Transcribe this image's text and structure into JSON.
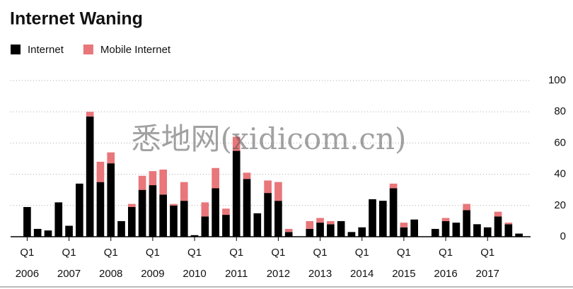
{
  "chart_data": {
    "type": "stacked_bar",
    "title": "Internet Waning",
    "watermark": "悉地网(xidicom.cn)",
    "categories": [
      "Q1",
      null,
      null,
      null,
      "Q1",
      null,
      null,
      null,
      "Q1",
      null,
      null,
      null,
      "Q1",
      null,
      null,
      null,
      "Q1",
      null,
      null,
      null,
      "Q1",
      null,
      null,
      null,
      "Q1",
      null,
      null,
      null,
      "Q1",
      null,
      null,
      null,
      "Q1",
      null,
      null,
      null,
      "Q1",
      null,
      null,
      null,
      "Q1",
      null,
      null,
      null,
      "Q1",
      null,
      null,
      null
    ],
    "category_years": [
      "2006",
      null,
      null,
      null,
      "2007",
      null,
      null,
      null,
      "2008",
      null,
      null,
      null,
      "2009",
      null,
      null,
      null,
      "2010",
      null,
      null,
      null,
      "2011",
      null,
      null,
      null,
      "2012",
      null,
      null,
      null,
      "2013",
      null,
      null,
      null,
      "2014",
      null,
      null,
      null,
      "2015",
      null,
      null,
      null,
      "2016",
      null,
      null,
      null,
      "2017",
      null,
      null,
      null
    ],
    "series": [
      {
        "name": "Internet",
        "color": "#000000",
        "values": [
          19,
          5,
          4,
          22,
          7,
          34,
          77,
          35,
          47,
          10,
          19,
          30,
          33,
          27,
          20,
          23,
          1,
          13,
          31,
          14,
          55,
          37,
          15,
          28,
          23,
          3,
          0,
          5,
          9,
          8,
          10,
          3,
          6,
          24,
          23,
          31,
          6,
          11,
          0,
          5,
          10,
          9,
          17,
          8,
          6,
          13,
          8,
          2
        ]
      },
      {
        "name": "Mobile Internet",
        "color": "#e8767a",
        "values": [
          0,
          0,
          0,
          0,
          0,
          0,
          3,
          13,
          7,
          0,
          2,
          9,
          9,
          16,
          1,
          12,
          0,
          9,
          13,
          4,
          9,
          4,
          0,
          8,
          12,
          2,
          0,
          5,
          3,
          2,
          0,
          0,
          0,
          0,
          0,
          3,
          3,
          0,
          0,
          0,
          2,
          0,
          4,
          0,
          0,
          3,
          1,
          0
        ]
      }
    ],
    "ylim": [
      0,
      100
    ],
    "yticks": [
      0,
      20,
      40,
      60,
      80,
      100
    ],
    "grid": true
  }
}
